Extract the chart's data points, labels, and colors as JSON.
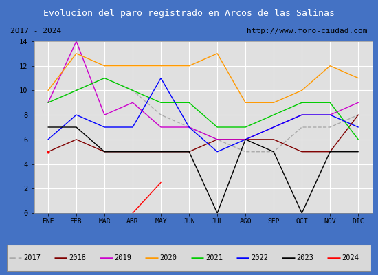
{
  "title": "Evolucion del paro registrado en Arcos de las Salinas",
  "subtitle_left": "2017 - 2024",
  "subtitle_right": "http://www.foro-ciudad.com",
  "x_labels": [
    "ENE",
    "FEB",
    "MAR",
    "ABR",
    "MAY",
    "JUN",
    "JUL",
    "AGO",
    "SEP",
    "OCT",
    "NOV",
    "DIC"
  ],
  "ylim": [
    0,
    14
  ],
  "yticks": [
    0,
    2,
    4,
    6,
    8,
    10,
    12,
    14
  ],
  "series": {
    "2017": {
      "color": "#aaaaaa",
      "values": [
        9,
        10,
        11,
        10,
        8,
        7,
        6,
        5,
        5,
        7,
        7,
        8
      ],
      "dashed": true
    },
    "2018": {
      "color": "#800000",
      "values": [
        5,
        6,
        5,
        5,
        5,
        5,
        6,
        6,
        6,
        5,
        5,
        8
      ],
      "dashed": false
    },
    "2019": {
      "color": "#cc00cc",
      "values": [
        9,
        14,
        8,
        9,
        7,
        7,
        6,
        6,
        7,
        8,
        8,
        9
      ],
      "dashed": false
    },
    "2020": {
      "color": "#ff9900",
      "values": [
        10,
        13,
        12,
        12,
        12,
        12,
        13,
        9,
        9,
        10,
        12,
        11
      ],
      "dashed": false
    },
    "2021": {
      "color": "#00cc00",
      "values": [
        9,
        10,
        11,
        10,
        9,
        9,
        7,
        7,
        8,
        9,
        9,
        6
      ],
      "dashed": false
    },
    "2022": {
      "color": "#0000ff",
      "values": [
        6,
        8,
        7,
        7,
        11,
        7,
        5,
        6,
        7,
        8,
        8,
        7
      ],
      "dashed": false
    },
    "2023": {
      "color": "#000000",
      "values": [
        7,
        7,
        5,
        5,
        5,
        5,
        0,
        6,
        5,
        0,
        5,
        5
      ],
      "dashed": false
    },
    "2024": {
      "color": "#ff0000",
      "values": [
        5,
        null,
        null,
        0,
        2.5,
        null,
        null,
        null,
        null,
        null,
        null,
        null
      ],
      "dashed": false
    }
  },
  "title_bg": "#4472c4",
  "title_color": "#ffffff",
  "subtitle_bg": "#d9d9d9",
  "plot_bg": "#e0e0e0",
  "grid_color": "#ffffff",
  "legend_bg": "#d9d9d9",
  "border_color": "#4472c4",
  "outer_bg": "#c0c0c0"
}
